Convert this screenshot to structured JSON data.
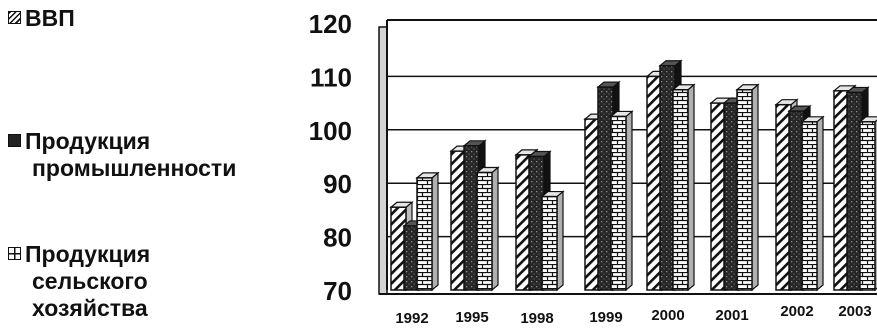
{
  "legend": {
    "items": [
      {
        "label_line1": "ВВП",
        "label_line2": "",
        "label_line3": "",
        "pattern": "hatch-diagonal"
      },
      {
        "label_line1": "Продукция",
        "label_line2": "промышленности",
        "label_line3": "",
        "pattern": "dark-dotted"
      },
      {
        "label_line1": "Продукция",
        "label_line2": "сельского",
        "label_line3": "хозяйства",
        "pattern": "brick"
      }
    ]
  },
  "chart_data": {
    "type": "bar",
    "style": "3d-grouped",
    "categories": [
      "1992",
      "1995",
      "1998",
      "1999",
      "2000",
      "2001",
      "2002",
      "2003"
    ],
    "series": [
      {
        "name": "ВВП",
        "values": [
          85.5,
          96,
          95.3,
          102,
          110,
          105,
          104.7,
          107.3
        ]
      },
      {
        "name": "Продукция промышленности",
        "values": [
          82,
          97,
          95,
          108,
          112,
          105,
          103.5,
          107
        ]
      },
      {
        "name": "Продукция сельского хозяйства",
        "values": [
          91,
          92,
          87.5,
          102.5,
          107.5,
          107.5,
          101.5,
          101.5
        ]
      }
    ],
    "yticks": [
      "120",
      "110",
      "100",
      "90",
      "80",
      "70"
    ],
    "ylim": [
      70,
      120
    ],
    "grid": true,
    "legend_position": "left",
    "colors": {
      "frame": "#111111",
      "wall": "#d4d4d4",
      "bar_fill": "#ffffff",
      "dark_fill": "#262626"
    }
  }
}
